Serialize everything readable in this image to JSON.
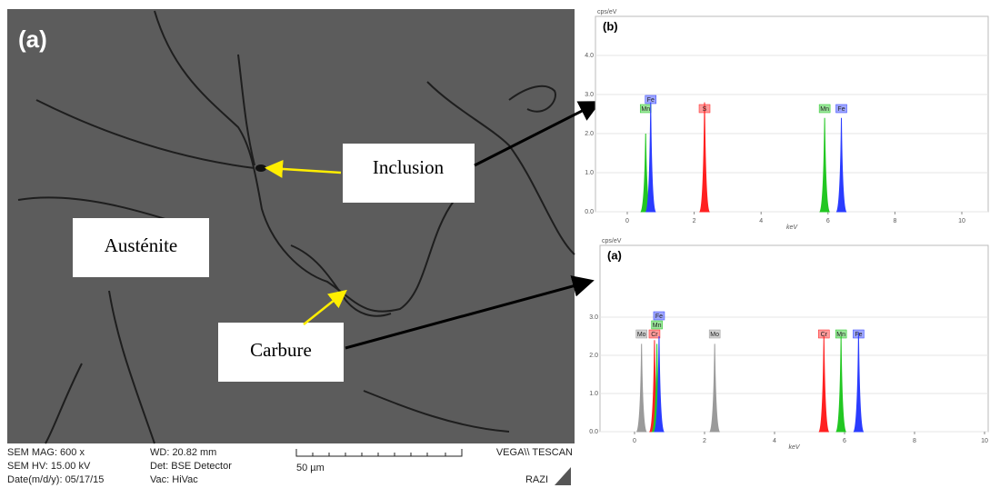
{
  "panel_label": "(a)",
  "annotations": {
    "inclusion": "Inclusion",
    "austenite": "Austénite",
    "carbure": "Carbure"
  },
  "sem_info": {
    "mag": "SEM MAG: 600 x",
    "wd": "WD: 20.82 mm",
    "hv": "SEM HV: 15.00 kV",
    "det": "Det: BSE Detector",
    "date": "Date(m/d/y): 05/17/15",
    "vac": "Vac: HiVac",
    "scale": "50 µm",
    "vendor": "VEGA\\\\ TESCAN",
    "lab": "RAZI"
  },
  "spectra": [
    {
      "label": "(b)",
      "y_unit": "cps/eV",
      "x_label": "keV",
      "xticks": [
        0,
        2,
        4,
        6,
        8,
        10
      ],
      "yticks": [
        {
          "value": 0,
          "label": "0.0"
        },
        {
          "value": 1,
          "label": "1.0"
        },
        {
          "value": 2,
          "label": "2.0"
        },
        {
          "value": 3,
          "label": "3.0"
        },
        {
          "value": 4,
          "label": "4.0"
        }
      ],
      "peaks": [
        {
          "element": "Mn",
          "x": 0.55,
          "y": 2.0,
          "color": "#22c722"
        },
        {
          "element": "Fe",
          "x": 0.7,
          "y": 2.8,
          "color": "#2a3cff"
        },
        {
          "element": "S",
          "x": 2.31,
          "y": 2.8,
          "color": "#ff2020"
        },
        {
          "element": "Mn",
          "x": 5.9,
          "y": 2.4,
          "color": "#22c722"
        },
        {
          "element": "Fe",
          "x": 6.4,
          "y": 2.4,
          "color": "#2a3cff"
        }
      ]
    },
    {
      "label": "(a)",
      "y_unit": "cps/eV",
      "x_label": "keV",
      "xticks": [
        0,
        2,
        4,
        6,
        8,
        10
      ],
      "yticks": [
        {
          "value": 0,
          "label": "0.0"
        },
        {
          "value": 1,
          "label": "1.0"
        },
        {
          "value": 2,
          "label": "2.0"
        },
        {
          "value": 3,
          "label": "3.0"
        }
      ],
      "peaks": [
        {
          "element": "Mo",
          "x": 0.2,
          "y": 2.3,
          "color": "#9a9a9a"
        },
        {
          "element": "Cr",
          "x": 0.57,
          "y": 2.4,
          "color": "#ff2020"
        },
        {
          "element": "Mn",
          "x": 0.64,
          "y": 2.3,
          "color": "#22c722"
        },
        {
          "element": "Fe",
          "x": 0.7,
          "y": 2.5,
          "color": "#2a3cff"
        },
        {
          "element": "Mo",
          "x": 2.29,
          "y": 2.3,
          "color": "#9a9a9a"
        },
        {
          "element": "Cr",
          "x": 5.41,
          "y": 2.5,
          "color": "#ff2020"
        },
        {
          "element": "Mn",
          "x": 5.9,
          "y": 2.5,
          "color": "#22c722"
        },
        {
          "element": "Fe",
          "x": 6.4,
          "y": 2.6,
          "color": "#2a3cff"
        }
      ]
    }
  ]
}
